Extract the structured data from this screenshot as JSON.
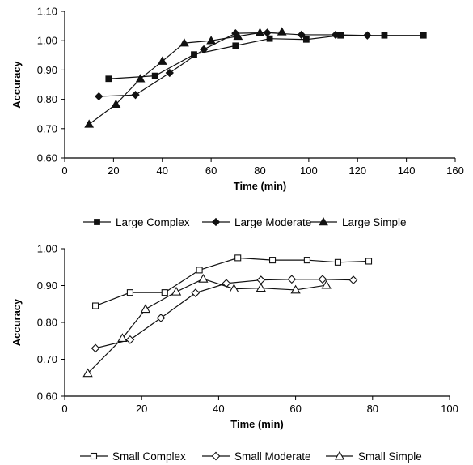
{
  "chart_data": [
    {
      "type": "line",
      "xlabel": "Time (min)",
      "ylabel": "Accuracy",
      "xlim": [
        0,
        160
      ],
      "ylim": [
        0.6,
        1.1
      ],
      "xticks": [
        "0",
        "20",
        "40",
        "60",
        "80",
        "100",
        "120",
        "140",
        "160"
      ],
      "yticks": [
        "0.60",
        "0.70",
        "0.80",
        "0.90",
        "1.00",
        "1.10"
      ],
      "grid": false,
      "legend_position": "bottom",
      "series": [
        {
          "name": "Large Complex",
          "marker": "square-filled",
          "x": [
            18,
            37,
            53,
            70,
            84,
            99,
            113,
            131,
            147
          ],
          "y": [
            0.87,
            0.88,
            0.953,
            0.983,
            1.007,
            1.004,
            1.018,
            1.018,
            1.018
          ]
        },
        {
          "name": "Large Moderate",
          "marker": "diamond-filled",
          "x": [
            14,
            29,
            43,
            57,
            70,
            83,
            97,
            111,
            124
          ],
          "y": [
            0.81,
            0.815,
            0.89,
            0.97,
            1.025,
            1.027,
            1.02,
            1.02,
            1.018
          ]
        },
        {
          "name": "Large Simple",
          "marker": "triangle-filled",
          "x": [
            10,
            21,
            31,
            40,
            49,
            60,
            71,
            80,
            89
          ],
          "y": [
            0.715,
            0.783,
            0.87,
            0.93,
            0.992,
            1.0,
            1.015,
            1.027,
            1.03
          ]
        }
      ]
    },
    {
      "type": "line",
      "xlabel": "Time (min)",
      "ylabel": "Accuracy",
      "xlim": [
        0,
        100
      ],
      "ylim": [
        0.6,
        1.0
      ],
      "xticks": [
        "0",
        "20",
        "40",
        "60",
        "80",
        "100"
      ],
      "yticks": [
        "0.60",
        "0.70",
        "0.80",
        "0.90",
        "1.00"
      ],
      "grid": false,
      "legend_position": "bottom",
      "series": [
        {
          "name": "Small Complex",
          "marker": "square-open",
          "x": [
            8,
            17,
            26,
            35,
            45,
            54,
            63,
            71,
            79
          ],
          "y": [
            0.845,
            0.881,
            0.881,
            0.942,
            0.975,
            0.969,
            0.969,
            0.963,
            0.966
          ]
        },
        {
          "name": "Small Moderate",
          "marker": "diamond-open",
          "x": [
            8,
            17,
            25,
            34,
            42,
            51,
            59,
            67,
            75
          ],
          "y": [
            0.73,
            0.753,
            0.812,
            0.88,
            0.906,
            0.915,
            0.917,
            0.917,
            0.915
          ]
        },
        {
          "name": "Small Simple",
          "marker": "triangle-open",
          "x": [
            6,
            15,
            21,
            29,
            36,
            44,
            51,
            60,
            68
          ],
          "y": [
            0.662,
            0.757,
            0.836,
            0.883,
            0.918,
            0.891,
            0.893,
            0.888,
            0.901
          ]
        }
      ]
    }
  ]
}
